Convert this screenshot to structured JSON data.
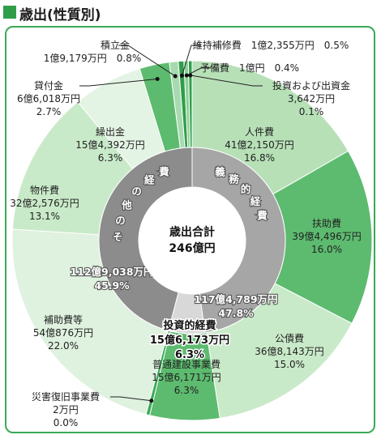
{
  "header": {
    "title": "歳出(性質別)",
    "mark_color": "#2f9e49"
  },
  "chart_data": {
    "type": "pie",
    "center_label": "歳出合計",
    "center_value": "246億円",
    "outer": {
      "slices": [
        {
          "name": "人件費",
          "amount": "41億2,150万円",
          "percent": 16.8,
          "color": "#b7e0b7"
        },
        {
          "name": "扶助費",
          "amount": "39億4,496万円",
          "percent": 16.0,
          "color": "#5dbb6f"
        },
        {
          "name": "公債費",
          "amount": "36億8,143万円",
          "percent": 15.0,
          "color": "#c9eac9"
        },
        {
          "name": "普通建設事業費",
          "amount": "15億6,171万円",
          "percent": 6.3,
          "color": "#5dbb6f"
        },
        {
          "name": "災害復旧事業費",
          "amount": "2万円",
          "percent": 0.0,
          "color": "#3aa957"
        },
        {
          "name": "補助費等",
          "amount": "54億876万円",
          "percent": 22.0,
          "color": "#dff1df"
        },
        {
          "name": "物件費",
          "amount": "32億2,576万円",
          "percent": 13.1,
          "color": "#c9eac9"
        },
        {
          "name": "繰出金",
          "amount": "15億4,392万円",
          "percent": 6.3,
          "color": "#e4f4e4"
        },
        {
          "name": "貸付金",
          "amount": "6億6,018万円",
          "percent": 2.7,
          "color": "#5dbb6f"
        },
        {
          "name": "積立金",
          "amount": "1億9,179万円",
          "percent": 0.8,
          "color": "#a8dab0"
        },
        {
          "name": "維持補修費",
          "amount": "1億2,355万円",
          "percent": 0.5,
          "color": "#2f9e49"
        },
        {
          "name": "予備費",
          "amount": "1億円",
          "percent": 0.4,
          "color": "#8dd09a"
        },
        {
          "name": "投資および出資金",
          "amount": "3,642万円",
          "percent": 0.1,
          "color": "#2f9e49"
        }
      ]
    },
    "inner": {
      "slices": [
        {
          "name": "義務的経費",
          "amount": "117億4,789万円",
          "percent": 47.8,
          "color": "#a6a6a6"
        },
        {
          "name": "投資的経費",
          "amount": "15億6,173万円",
          "percent": 6.3,
          "color": "#d8d8d8"
        },
        {
          "name": "その他の経費",
          "amount": "112億9,038万円",
          "percent": 45.9,
          "color": "#8c8c8c"
        }
      ]
    }
  }
}
